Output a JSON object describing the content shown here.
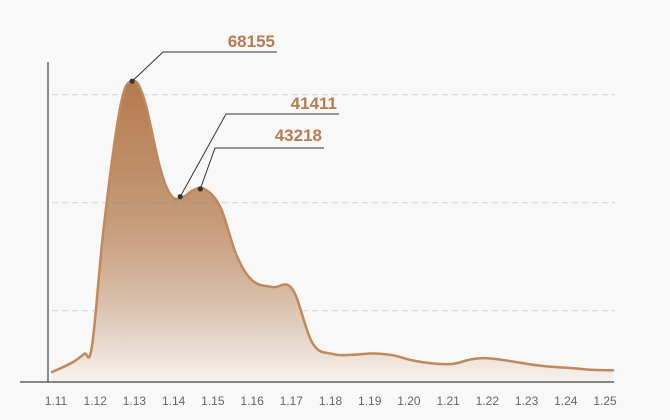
{
  "chart_data": {
    "type": "area",
    "title": "",
    "xlabel": "",
    "ylabel": "",
    "x_tick_labels": [
      "1.11",
      "1.12",
      "1.13",
      "1.14",
      "1.15",
      "1.16",
      "1.17",
      "1.18",
      "1.19",
      "1.20",
      "1.21",
      "1.22",
      "1.23",
      "1.24",
      "1.25"
    ],
    "x": [
      1.11,
      1.115,
      1.118,
      1.12,
      1.123,
      1.127,
      1.13,
      1.133,
      1.137,
      1.14,
      1.143,
      1.145,
      1.148,
      1.152,
      1.156,
      1.16,
      1.165,
      1.17,
      1.175,
      1.18,
      1.185,
      1.19,
      1.195,
      1.2,
      1.205,
      1.21,
      1.215,
      1.22,
      1.23,
      1.235,
      1.24,
      1.245,
      1.25
    ],
    "y": [
      800,
      3000,
      5000,
      7000,
      35000,
      62000,
      68155,
      64000,
      48000,
      41411,
      41500,
      42800,
      43218,
      39000,
      28000,
      22000,
      20500,
      20000,
      7500,
      5000,
      4800,
      5100,
      4700,
      3500,
      2800,
      2700,
      3800,
      3900,
      2500,
      2000,
      1700,
      1300,
      1200
    ],
    "ylim": [
      -1500,
      80000
    ],
    "xlim": [
      1.11,
      1.25
    ],
    "grid": {
      "horizontal": true,
      "style": "dashed",
      "values": [
        15000,
        40000,
        65000
      ]
    },
    "annotations": [
      {
        "label": "68155",
        "x": 1.13,
        "y": 68155
      },
      {
        "label": "41411",
        "x": 1.142,
        "y": 41411
      },
      {
        "label": "43218",
        "x": 1.147,
        "y": 43218
      }
    ],
    "colors": {
      "line": "#c0895c",
      "fill_top": "#b47a4c",
      "fill_bottom": "#f6f3f1",
      "annotation_text": "#b77b4f",
      "marker": "#333333",
      "grid": "#cfcfcf",
      "axis": "#444444"
    }
  }
}
